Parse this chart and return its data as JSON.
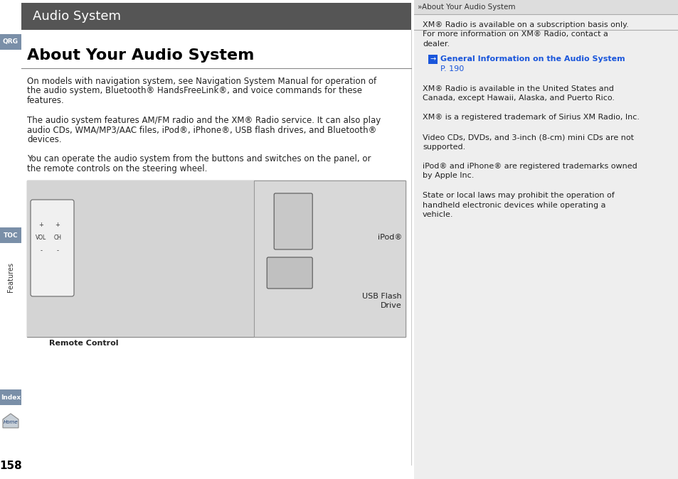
{
  "page_bg": "#ffffff",
  "header_bg": "#555555",
  "header_text": "Audio System",
  "header_text_color": "#ffffff",
  "right_panel_bg": "#eeeeee",
  "right_header_bg": "#dddddd",
  "right_header_text": "»About Your Audio System",
  "title": "About Your Audio System",
  "title_color": "#000000",
  "qrg_color": "#7a8fa8",
  "toc_color": "#7a8fa8",
  "index_color": "#7a8fa8",
  "para1_lines": [
    "On models with navigation system, see Navigation System Manual for operation of",
    "the audio system, Bluetooth® HandsFreeLink®, and voice commands for these",
    "features."
  ],
  "para2_lines": [
    "The audio system features AM/FM radio and the XM® Radio service. It can also play",
    "audio CDs, WMA/MP3/AAC files, iPod®, iPhone®, USB flash drives, and Bluetooth®",
    "devices."
  ],
  "para3_lines": [
    "You can operate the audio system from the buttons and switches on the panel, or",
    "the remote controls on the steering wheel."
  ],
  "caption_left": "Remote Control",
  "caption_ipod": "iPod®",
  "caption_usb1": "USB Flash",
  "caption_usb2": "Drive",
  "right_note1_lines": [
    "XM® Radio is available on a subscription basis only.",
    "For more information on XM® Radio, contact a",
    "dealer."
  ],
  "right_link_text": "General Information on the Audio System",
  "right_link_color": "#1a56db",
  "right_link_page": "P. 190",
  "right_note2_lines": [
    "XM® Radio is available in the United States and",
    "Canada, except Hawaii, Alaska, and Puerto Rico."
  ],
  "right_note3": "XM® is a registered trademark of Sirius XM Radio, Inc.",
  "right_note4_lines": [
    "Video CDs, DVDs, and 3-inch (8-cm) mini CDs are not",
    "supported."
  ],
  "right_note5_lines": [
    "iPod® and iPhone® are registered trademarks owned",
    "by Apple Inc."
  ],
  "right_note6_lines": [
    "State or local laws may prohibit the operation of",
    "handheld electronic devices while operating a",
    "vehicle."
  ],
  "page_number": "158"
}
